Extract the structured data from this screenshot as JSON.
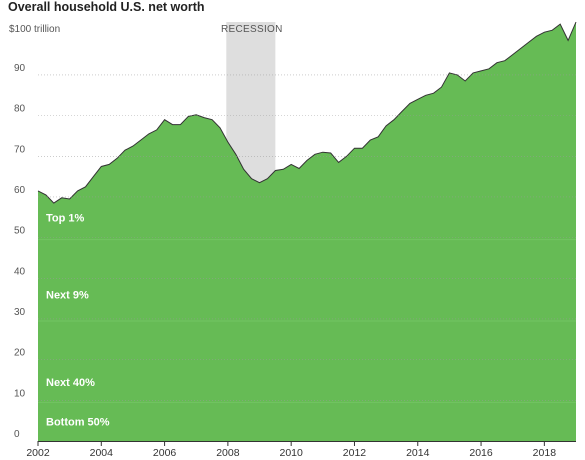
{
  "chart_data": {
    "type": "area",
    "title": "Overall household U.S. net worth",
    "ylabel": "",
    "xlabel": "",
    "y_unit_label": "$100 trillion",
    "ylim": [
      0,
      104
    ],
    "xlim": [
      2002,
      2019.0
    ],
    "y_ticks": [
      0,
      10,
      20,
      30,
      40,
      50,
      60,
      70,
      80,
      90
    ],
    "y_tick_labels": [
      "0",
      "10",
      "20",
      "30",
      "40",
      "50",
      "60",
      "70",
      "80",
      "90"
    ],
    "x_ticks": [
      2002,
      2004,
      2006,
      2008,
      2010,
      2012,
      2014,
      2016,
      2018
    ],
    "x_tick_labels": [
      "2002",
      "2004",
      "2006",
      "2008",
      "2010",
      "2012",
      "2014",
      "2016",
      "2018"
    ],
    "grid": true,
    "area_color": "#66bb55",
    "line_color": "#333333",
    "recession": {
      "label": "RECESSION",
      "start": 2007.95,
      "end": 2009.5,
      "color": "#dedede"
    },
    "bands": [
      {
        "name": "Top 1%",
        "y": 54
      },
      {
        "name": "Next 9%",
        "y": 35
      },
      {
        "name": "Next 40%",
        "y": 13.5
      },
      {
        "name": "Bottom 50%",
        "y": 3.8
      }
    ],
    "band_boundaries": [
      49.5,
      29.5,
      9.5
    ],
    "series": [
      {
        "x": [
          2002.0,
          2002.25,
          2002.5,
          2002.75,
          2003.0,
          2003.25,
          2003.5,
          2003.75,
          2004.0,
          2004.25,
          2004.5,
          2004.75,
          2005.0,
          2005.25,
          2005.5,
          2005.75,
          2006.0,
          2006.25,
          2006.5,
          2006.75,
          2007.0,
          2007.25,
          2007.5,
          2007.75,
          2008.0,
          2008.25,
          2008.5,
          2008.75,
          2009.0,
          2009.25,
          2009.5,
          2009.75,
          2010.0,
          2010.25,
          2010.5,
          2010.75,
          2011.0,
          2011.25,
          2011.5,
          2011.75,
          2012.0,
          2012.25,
          2012.5,
          2012.75,
          2013.0,
          2013.25,
          2013.5,
          2013.75,
          2014.0,
          2014.25,
          2014.5,
          2014.75,
          2015.0,
          2015.25,
          2015.5,
          2015.75,
          2016.0,
          2016.25,
          2016.5,
          2016.75,
          2017.0,
          2017.25,
          2017.5,
          2017.75,
          2018.0,
          2018.25,
          2018.5,
          2018.75,
          2019.0
        ],
        "values": [
          61.5,
          60.5,
          58.5,
          59.8,
          59.5,
          61.5,
          62.5,
          65.0,
          67.5,
          68.0,
          69.5,
          71.5,
          72.5,
          74.0,
          75.5,
          76.5,
          79.0,
          77.8,
          77.8,
          79.8,
          80.2,
          79.5,
          79.0,
          77.0,
          73.5,
          70.5,
          66.8,
          64.5,
          63.5,
          64.5,
          66.5,
          66.8,
          68.0,
          67.0,
          69.0,
          70.5,
          71.0,
          70.8,
          68.5,
          70.0,
          72.0,
          72.0,
          74.0,
          74.8,
          77.5,
          79.0,
          81.0,
          83.0,
          84.0,
          85.0,
          85.5,
          87.0,
          90.5,
          90.0,
          88.5,
          90.5,
          91.0,
          91.5,
          93.0,
          93.5,
          95.0,
          96.5,
          98.0,
          99.5,
          100.5,
          101.0,
          102.5,
          98.5,
          103.0
        ]
      }
    ]
  }
}
